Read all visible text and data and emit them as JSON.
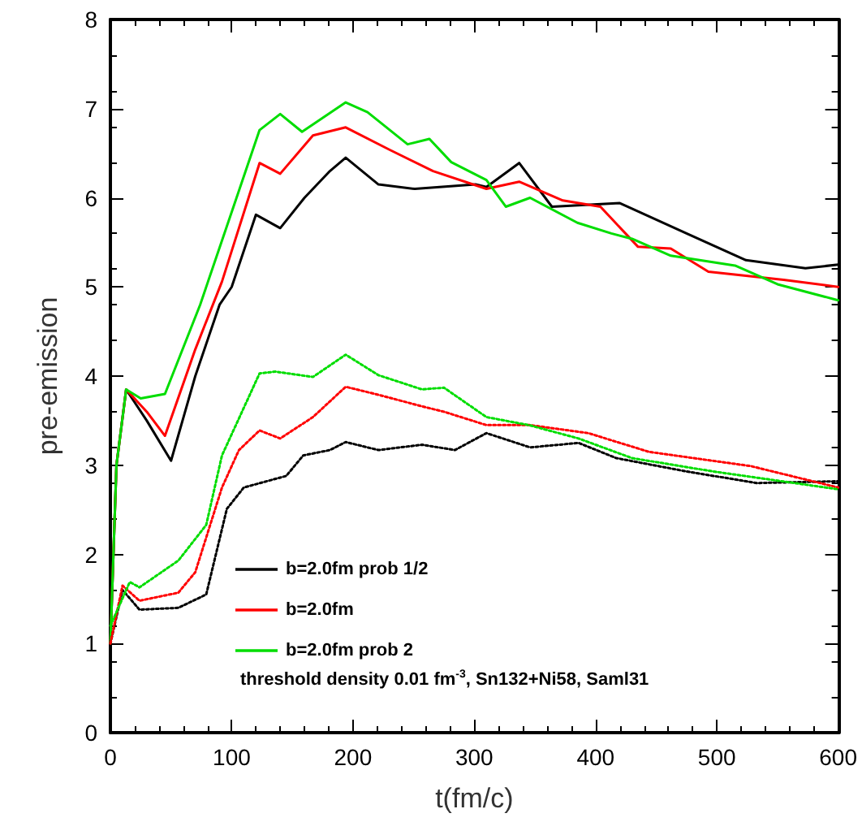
{
  "chart_data": {
    "type": "line",
    "xlabel": "t(fm/c)",
    "ylabel": "pre-emission",
    "xlim": [
      0,
      600
    ],
    "xticks": [
      0,
      100,
      200,
      300,
      400,
      500,
      600
    ],
    "ylim": [
      0,
      8
    ],
    "yticks": [
      0,
      1,
      2,
      3,
      4,
      5,
      6,
      7,
      8
    ],
    "grid": false,
    "legend": "bottom",
    "marker": "none",
    "annotations": [
      "threshold density 0.01 fm$^{-3}$, Sn132+Ni58, Saml31"
    ],
    "series": [
      {
        "name": "b=2.0fm prob 1/2",
        "color": "#000000",
        "line_style": "solid",
        "x": [
          0,
          5,
          13,
          30,
          50,
          70,
          90,
          100,
          120,
          140,
          160,
          181,
          194,
          221,
          251,
          301,
          310,
          337,
          364,
          420,
          475,
          524,
          573,
          600
        ],
        "values": [
          1.0,
          3.0,
          3.85,
          3.5,
          3.05,
          4.0,
          4.8,
          5.0,
          5.81,
          5.66,
          6.0,
          6.3,
          6.45,
          6.15,
          6.1,
          6.15,
          6.12,
          6.39,
          5.9,
          5.94,
          5.6,
          5.3,
          5.21,
          5.25
        ]
      },
      {
        "name": "b=2.0fm",
        "color": "#ff0000",
        "line_style": "solid",
        "x": [
          0,
          5,
          13,
          30,
          45,
          70,
          92,
          123,
          140,
          167,
          194,
          230,
          266,
          310,
          337,
          373,
          404,
          435,
          462,
          493,
          555,
          600
        ],
        "values": [
          1.0,
          3.0,
          3.85,
          3.6,
          3.33,
          4.3,
          5.06,
          6.39,
          6.27,
          6.7,
          6.79,
          6.54,
          6.3,
          6.1,
          6.18,
          5.97,
          5.9,
          5.45,
          5.43,
          5.17,
          5.08,
          5.0
        ]
      },
      {
        "name": "b=2.0fm prob 2",
        "color": "#00dd00",
        "line_style": "solid",
        "x": [
          0,
          5,
          13,
          25,
          45,
          74,
          123,
          140,
          158,
          194,
          212,
          245,
          263,
          281,
          310,
          326,
          346,
          385,
          413,
          430,
          462,
          515,
          550,
          600
        ],
        "values": [
          1.0,
          3.0,
          3.85,
          3.75,
          3.8,
          4.8,
          6.76,
          6.94,
          6.74,
          7.07,
          6.96,
          6.6,
          6.66,
          6.4,
          6.2,
          5.9,
          6.0,
          5.72,
          5.6,
          5.54,
          5.35,
          5.24,
          5.03,
          4.85
        ]
      },
      {
        "color": "#000000",
        "line_style": "dotted",
        "x": [
          0,
          10,
          24,
          56,
          79,
          96,
          110,
          145,
          159,
          181,
          194,
          221,
          257,
          284,
          310,
          346,
          386,
          417,
          475,
          533,
          600
        ],
        "values": [
          1.0,
          1.6,
          1.38,
          1.4,
          1.55,
          2.51,
          2.75,
          2.88,
          3.11,
          3.17,
          3.26,
          3.17,
          3.23,
          3.17,
          3.36,
          3.2,
          3.25,
          3.08,
          2.93,
          2.8,
          2.82
        ]
      },
      {
        "color": "#ff0000",
        "line_style": "dotted",
        "x": [
          0,
          10,
          24,
          56,
          70,
          92,
          106,
          123,
          140,
          167,
          194,
          221,
          257,
          275,
          310,
          346,
          394,
          444,
          528,
          600
        ],
        "values": [
          1.0,
          1.65,
          1.48,
          1.57,
          1.8,
          2.75,
          3.17,
          3.39,
          3.3,
          3.54,
          3.88,
          3.79,
          3.66,
          3.6,
          3.45,
          3.45,
          3.36,
          3.15,
          2.99,
          2.75
        ]
      },
      {
        "color": "#00dd00",
        "line_style": "dotted",
        "x": [
          0,
          16,
          24,
          56,
          79,
          92,
          123,
          136,
          167,
          194,
          221,
          257,
          275,
          310,
          345,
          386,
          430,
          497,
          600
        ],
        "values": [
          1.2,
          1.69,
          1.63,
          1.93,
          2.33,
          3.11,
          4.03,
          4.05,
          3.99,
          4.24,
          4.01,
          3.85,
          3.87,
          3.54,
          3.45,
          3.3,
          3.08,
          2.93,
          2.73
        ]
      }
    ]
  }
}
